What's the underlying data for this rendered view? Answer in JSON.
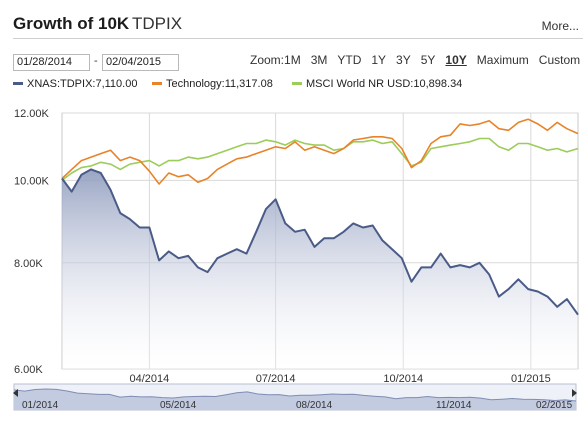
{
  "header": {
    "title": "Growth of 10K",
    "ticker": "TDPIX",
    "more_label": "More..."
  },
  "date_range": {
    "start": "01/28/2014",
    "separator": "-",
    "end": "02/04/2015"
  },
  "zoom": {
    "label": "Zoom:",
    "options": [
      "1M",
      "3M",
      "YTD",
      "1Y",
      "3Y",
      "5Y",
      "10Y",
      "Maximum",
      "Custom"
    ],
    "active": "10Y"
  },
  "legend": [
    {
      "label": "XNAS:TDPIX:7,110.00",
      "color": "#4a5b87"
    },
    {
      "label": "Technology:11,317.08",
      "color": "#e8832a"
    },
    {
      "label": "MSCI World NR USD:10,898.34",
      "color": "#9ccc5a"
    }
  ],
  "chart_data": {
    "type": "line",
    "x": [
      "2014-01-28",
      "2014-02-04",
      "2014-02-11",
      "2014-02-18",
      "2014-02-25",
      "2014-03-04",
      "2014-03-11",
      "2014-03-18",
      "2014-03-25",
      "2014-04-01",
      "2014-04-08",
      "2014-04-15",
      "2014-04-22",
      "2014-04-29",
      "2014-05-06",
      "2014-05-13",
      "2014-05-20",
      "2014-05-27",
      "2014-06-03",
      "2014-06-10",
      "2014-06-17",
      "2014-06-24",
      "2014-07-01",
      "2014-07-08",
      "2014-07-15",
      "2014-07-22",
      "2014-07-29",
      "2014-08-05",
      "2014-08-12",
      "2014-08-19",
      "2014-08-26",
      "2014-09-02",
      "2014-09-09",
      "2014-09-16",
      "2014-09-23",
      "2014-09-30",
      "2014-10-07",
      "2014-10-14",
      "2014-10-21",
      "2014-10-28",
      "2014-11-04",
      "2014-11-11",
      "2014-11-18",
      "2014-11-25",
      "2014-12-02",
      "2014-12-09",
      "2014-12-16",
      "2014-12-23",
      "2014-12-30",
      "2015-01-06",
      "2015-01-13",
      "2015-01-20",
      "2015-01-27",
      "2015-02-04"
    ],
    "series": [
      {
        "name": "XNAS:TDPIX",
        "color": "#4a5b87",
        "values": [
          10050,
          9700,
          10150,
          10300,
          10200,
          9750,
          9150,
          9000,
          8800,
          8800,
          8050,
          8250,
          8100,
          8150,
          7900,
          7800,
          8100,
          8200,
          8300,
          8200,
          8700,
          9250,
          9500,
          8900,
          8700,
          8750,
          8350,
          8550,
          8550,
          8700,
          8900,
          8800,
          8850,
          8500,
          8300,
          8100,
          7600,
          7900,
          7900,
          8200,
          7900,
          7950,
          7900,
          8000,
          7750,
          7300,
          7450,
          7650,
          7450,
          7400,
          7300,
          7100,
          7250,
          6950
        ]
      },
      {
        "name": "Technology",
        "color": "#e8832a",
        "values": [
          10050,
          10300,
          10550,
          10650,
          10750,
          10850,
          10550,
          10650,
          10550,
          10250,
          9900,
          10200,
          10100,
          10150,
          9950,
          10050,
          10300,
          10450,
          10600,
          10650,
          10750,
          10850,
          10950,
          10900,
          11100,
          10850,
          10950,
          10850,
          10750,
          10900,
          11150,
          11200,
          11250,
          11250,
          11200,
          10900,
          10350,
          10550,
          11050,
          11250,
          11300,
          11650,
          11600,
          11650,
          11750,
          11500,
          11450,
          11700,
          11800,
          11650,
          11450,
          11700,
          11500,
          11350
        ]
      },
      {
        "name": "MSCI World NR USD",
        "color": "#9ccc5a",
        "values": [
          10000,
          10200,
          10350,
          10400,
          10500,
          10450,
          10300,
          10450,
          10500,
          10550,
          10400,
          10550,
          10550,
          10650,
          10600,
          10650,
          10750,
          10850,
          10950,
          11050,
          11050,
          11150,
          11100,
          11000,
          11150,
          11050,
          11000,
          11000,
          10850,
          10900,
          11100,
          11100,
          11150,
          11050,
          11100,
          10750,
          10400,
          10500,
          10900,
          10950,
          11000,
          11050,
          11100,
          11200,
          11200,
          10950,
          10850,
          11050,
          11050,
          10950,
          10850,
          10900,
          10800,
          10900
        ]
      }
    ],
    "y_ticks": [
      6000,
      8000,
      10000,
      12000
    ],
    "y_tick_labels": [
      "6.00K",
      "8.00K",
      "10.00K",
      "12.00K"
    ],
    "ylim": [
      6000,
      12000
    ],
    "x_tick_labels": [
      {
        "date": "2014-04-01",
        "label": "04/2014"
      },
      {
        "date": "2014-07-01",
        "label": "07/2014"
      },
      {
        "date": "2014-10-01",
        "label": "10/2014"
      },
      {
        "date": "2015-01-01",
        "label": "01/2015"
      }
    ],
    "y_scale": "log",
    "grid": true,
    "navigator_labels": [
      "01/2014",
      "05/2014",
      "08/2014",
      "11/2014",
      "02/2015"
    ]
  }
}
